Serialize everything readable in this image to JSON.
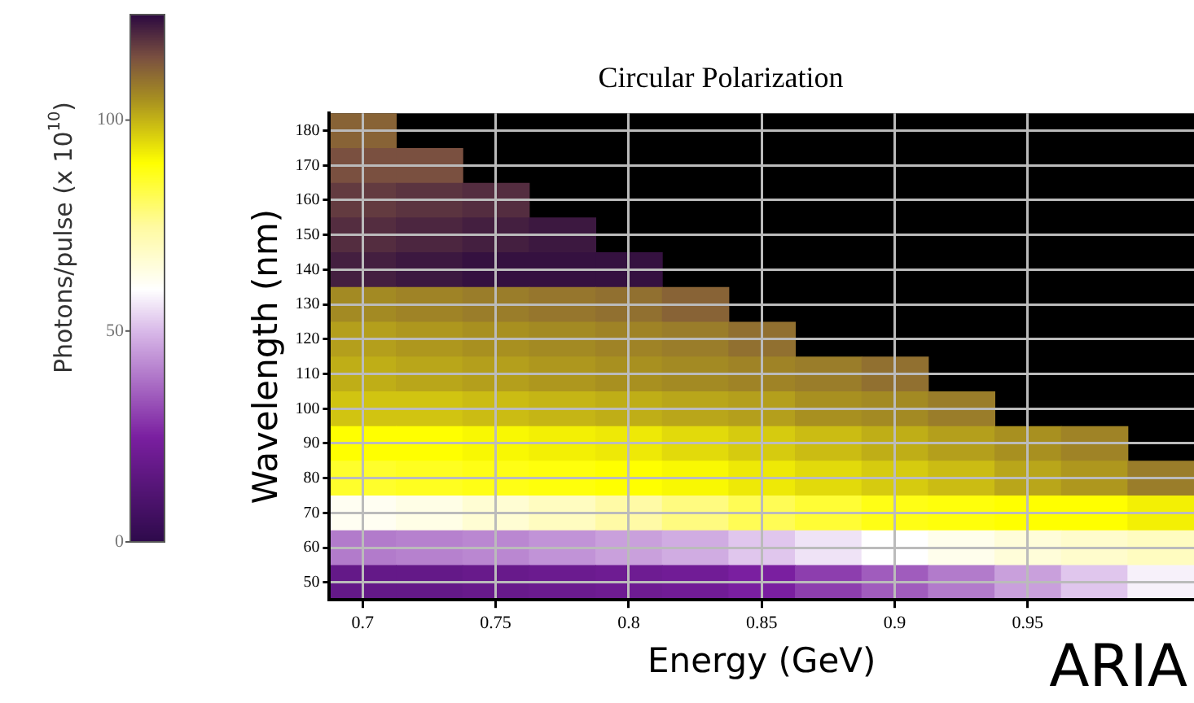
{
  "chart_data": {
    "type": "heatmap",
    "title": "Circular Polarization",
    "xlabel": "Energy (GeV)",
    "ylabel": "Wavelength (nm)",
    "clabel": "Photons/pulse (x 10$^{10}$)",
    "annotations": [
      "ARIA"
    ],
    "categories": [
      "0.7",
      null,
      "0.75",
      null,
      "0.8",
      null,
      "0.85",
      null,
      "0.9",
      null,
      "0.95",
      null,
      null
    ],
    "y_categories": [
      "180",
      "170",
      "160",
      "150",
      "140",
      "130",
      "120",
      "110",
      "100",
      "90",
      "80",
      "70",
      "60",
      "50"
    ],
    "clim": [
      0,
      125
    ],
    "cticks": [
      0,
      50,
      100
    ],
    "grid": true,
    "cells": [
      [
        112,
        null,
        null,
        null,
        null,
        null,
        null,
        null,
        null,
        null,
        null,
        null,
        null
      ],
      [
        115,
        115,
        null,
        null,
        null,
        null,
        null,
        null,
        null,
        null,
        null,
        null,
        null
      ],
      [
        118,
        119,
        120,
        null,
        null,
        null,
        null,
        null,
        null,
        null,
        null,
        null,
        null
      ],
      [
        120,
        121,
        122,
        123,
        null,
        null,
        null,
        null,
        null,
        null,
        null,
        null,
        null
      ],
      [
        122,
        123,
        124,
        124,
        124,
        null,
        null,
        null,
        null,
        null,
        null,
        null,
        null
      ],
      [
        106,
        107,
        108,
        109,
        110,
        112,
        null,
        null,
        null,
        null,
        null,
        null,
        null
      ],
      [
        103,
        104,
        105,
        106,
        107,
        108,
        110,
        null,
        null,
        null,
        null,
        null,
        null
      ],
      [
        101,
        102,
        103,
        104,
        105,
        106,
        107,
        108,
        110,
        null,
        null,
        null,
        null
      ],
      [
        98,
        98,
        99,
        100,
        101,
        102,
        103,
        105,
        106,
        108,
        null,
        null,
        null
      ],
      [
        90,
        90,
        91,
        92,
        93,
        95,
        97,
        99,
        101,
        103,
        105,
        107,
        null
      ],
      [
        86,
        87,
        88,
        89,
        90,
        91,
        93,
        95,
        97,
        99,
        102,
        104,
        108
      ],
      [
        62,
        64,
        67,
        70,
        74,
        78,
        82,
        85,
        88,
        89,
        90,
        90,
        92
      ],
      [
        40,
        41,
        42,
        44,
        46,
        48,
        52,
        56,
        60,
        63,
        66,
        68,
        70
      ],
      [
        18,
        18,
        19,
        20,
        21,
        22,
        25,
        30,
        35,
        40,
        46,
        52,
        58
      ]
    ]
  }
}
